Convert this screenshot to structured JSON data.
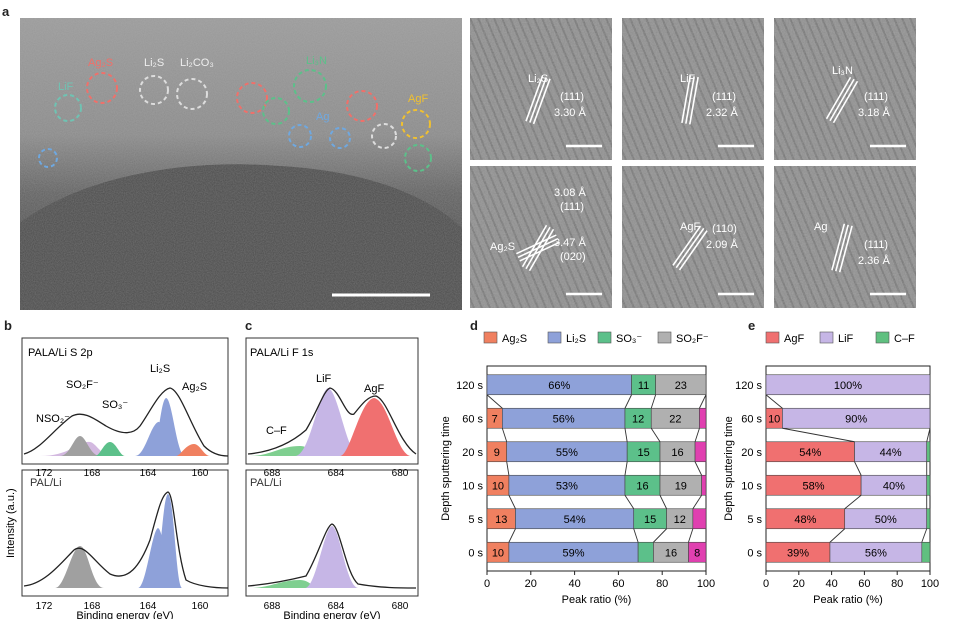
{
  "panels": {
    "a": "a",
    "b": "b",
    "c": "c",
    "d": "d",
    "e": "e"
  },
  "panel_a": {
    "overview_labels": {
      "ag2s": "Ag₂S",
      "li2s": "Li₂S",
      "li2co3": "Li₂CO₃",
      "li3n": "Li₃N",
      "lif": "LiF",
      "agf": "AgF",
      "ag": "Ag"
    },
    "insets": [
      {
        "phase": "Li₂S",
        "plane": "(111)",
        "d": "3.30 Å"
      },
      {
        "phase": "LiF",
        "plane": "(111)",
        "d": "2.32 Å"
      },
      {
        "phase": "Li₃N",
        "plane": "(111)",
        "d": "3.18 Å"
      },
      {
        "phase": "Ag₂S",
        "plane": "(111)",
        "d": "3.08 Å",
        "plane2": "(020)",
        "d2": "3.47 Å"
      },
      {
        "phase": "AgF",
        "plane": "(110)",
        "d": "2.09 Å"
      },
      {
        "phase": "Ag",
        "plane": "(111)",
        "d": "2.36 Å"
      }
    ],
    "colors": {
      "ag2s": "#f0706a",
      "li2s": "#c8c8d8",
      "li3n": "#5cc08a",
      "lif": "#6fc3b3",
      "agf": "#f0c030",
      "ag": "#6fa8e0"
    }
  },
  "panel_b": {
    "top_title": "PALA/Li S 2p",
    "bottom_title": "PAL/Li",
    "peaks": {
      "nso2": "NSO₂⁻",
      "so2f": "SO₂F⁻",
      "so3": "SO₃⁻",
      "li2s": "Li₂S",
      "ag2s": "Ag₂S"
    },
    "ylabel": "Intensity (a.u.)",
    "xlabel": "Binding energy (eV)",
    "ticks": [
      "172",
      "168",
      "164",
      "160"
    ]
  },
  "panel_c": {
    "top_title": "PALA/Li F 1s",
    "bottom_title": "PAL/Li",
    "peaks": {
      "cf": "C–F",
      "lif": "LiF",
      "agf": "AgF"
    },
    "xlabel": "Binding energy (eV)",
    "ticks": [
      "688",
      "684",
      "680"
    ]
  },
  "chart_data": [
    {
      "type": "bar",
      "stacked": true,
      "orientation": "horizontal",
      "ylabel": "Depth sputtering time",
      "xlabel": "Peak ratio (%)",
      "xlim": [
        0,
        100
      ],
      "xticks": [
        "0",
        "20",
        "40",
        "60",
        "80",
        "100"
      ],
      "categories": [
        "120 s",
        "60 s",
        "20 s",
        "10 s",
        "5 s",
        "0 s"
      ],
      "legend": {
        "ag2s": "Ag₂S",
        "li2s": "Li₂S",
        "so3": "SO₃⁻",
        "so2f": "SO₂F⁻"
      },
      "series": [
        {
          "key": "ag2s",
          "color": "#f08060",
          "values": [
            0,
            7,
            9,
            10,
            13,
            10
          ],
          "labels": [
            "",
            "7",
            "9",
            "10",
            "13",
            "10"
          ]
        },
        {
          "key": "li2s",
          "color": "#8ea1d9",
          "values": [
            66,
            56,
            55,
            53,
            54,
            59
          ],
          "labels": [
            "66%",
            "56%",
            "55%",
            "53%",
            "54%",
            "59%"
          ]
        },
        {
          "key": "so3",
          "color": "#5cc08a",
          "values": [
            11,
            12,
            15,
            16,
            15,
            7
          ],
          "labels": [
            "11",
            "12",
            "15",
            "16",
            "15",
            ""
          ]
        },
        {
          "key": "so2f",
          "color": "#b0b0b0",
          "values": [
            23,
            22,
            16,
            19,
            12,
            16
          ],
          "labels": [
            "23",
            "22",
            "16",
            "19",
            "12",
            "16"
          ]
        },
        {
          "key": "other",
          "color": "#e040b0",
          "values": [
            0,
            3,
            5,
            2,
            6,
            8
          ],
          "labels": [
            "",
            "",
            "",
            "",
            "",
            "8"
          ]
        }
      ]
    },
    {
      "type": "bar",
      "stacked": true,
      "orientation": "horizontal",
      "ylabel": "Depth sputtering time",
      "xlabel": "Peak ratio (%)",
      "xlim": [
        0,
        100
      ],
      "xticks": [
        "0",
        "20",
        "40",
        "60",
        "80",
        "100"
      ],
      "categories": [
        "120 s",
        "60 s",
        "20 s",
        "10 s",
        "5 s",
        "0 s"
      ],
      "legend": {
        "agf": "AgF",
        "lif": "LiF",
        "cf": "C–F"
      },
      "series": [
        {
          "key": "agf",
          "color": "#f07070",
          "values": [
            0,
            10,
            54,
            58,
            48,
            39
          ],
          "labels": [
            "",
            "10",
            "54%",
            "58%",
            "48%",
            "39%"
          ]
        },
        {
          "key": "lif",
          "color": "#c6b6e6",
          "values": [
            100,
            90,
            44,
            40,
            50,
            56
          ],
          "labels": [
            "100%",
            "90%",
            "44%",
            "40%",
            "50%",
            "56%"
          ]
        },
        {
          "key": "cf",
          "color": "#60c080",
          "values": [
            0,
            0,
            2,
            2,
            2,
            5
          ],
          "labels": [
            "",
            "",
            "",
            "",
            "",
            ""
          ]
        }
      ]
    }
  ]
}
